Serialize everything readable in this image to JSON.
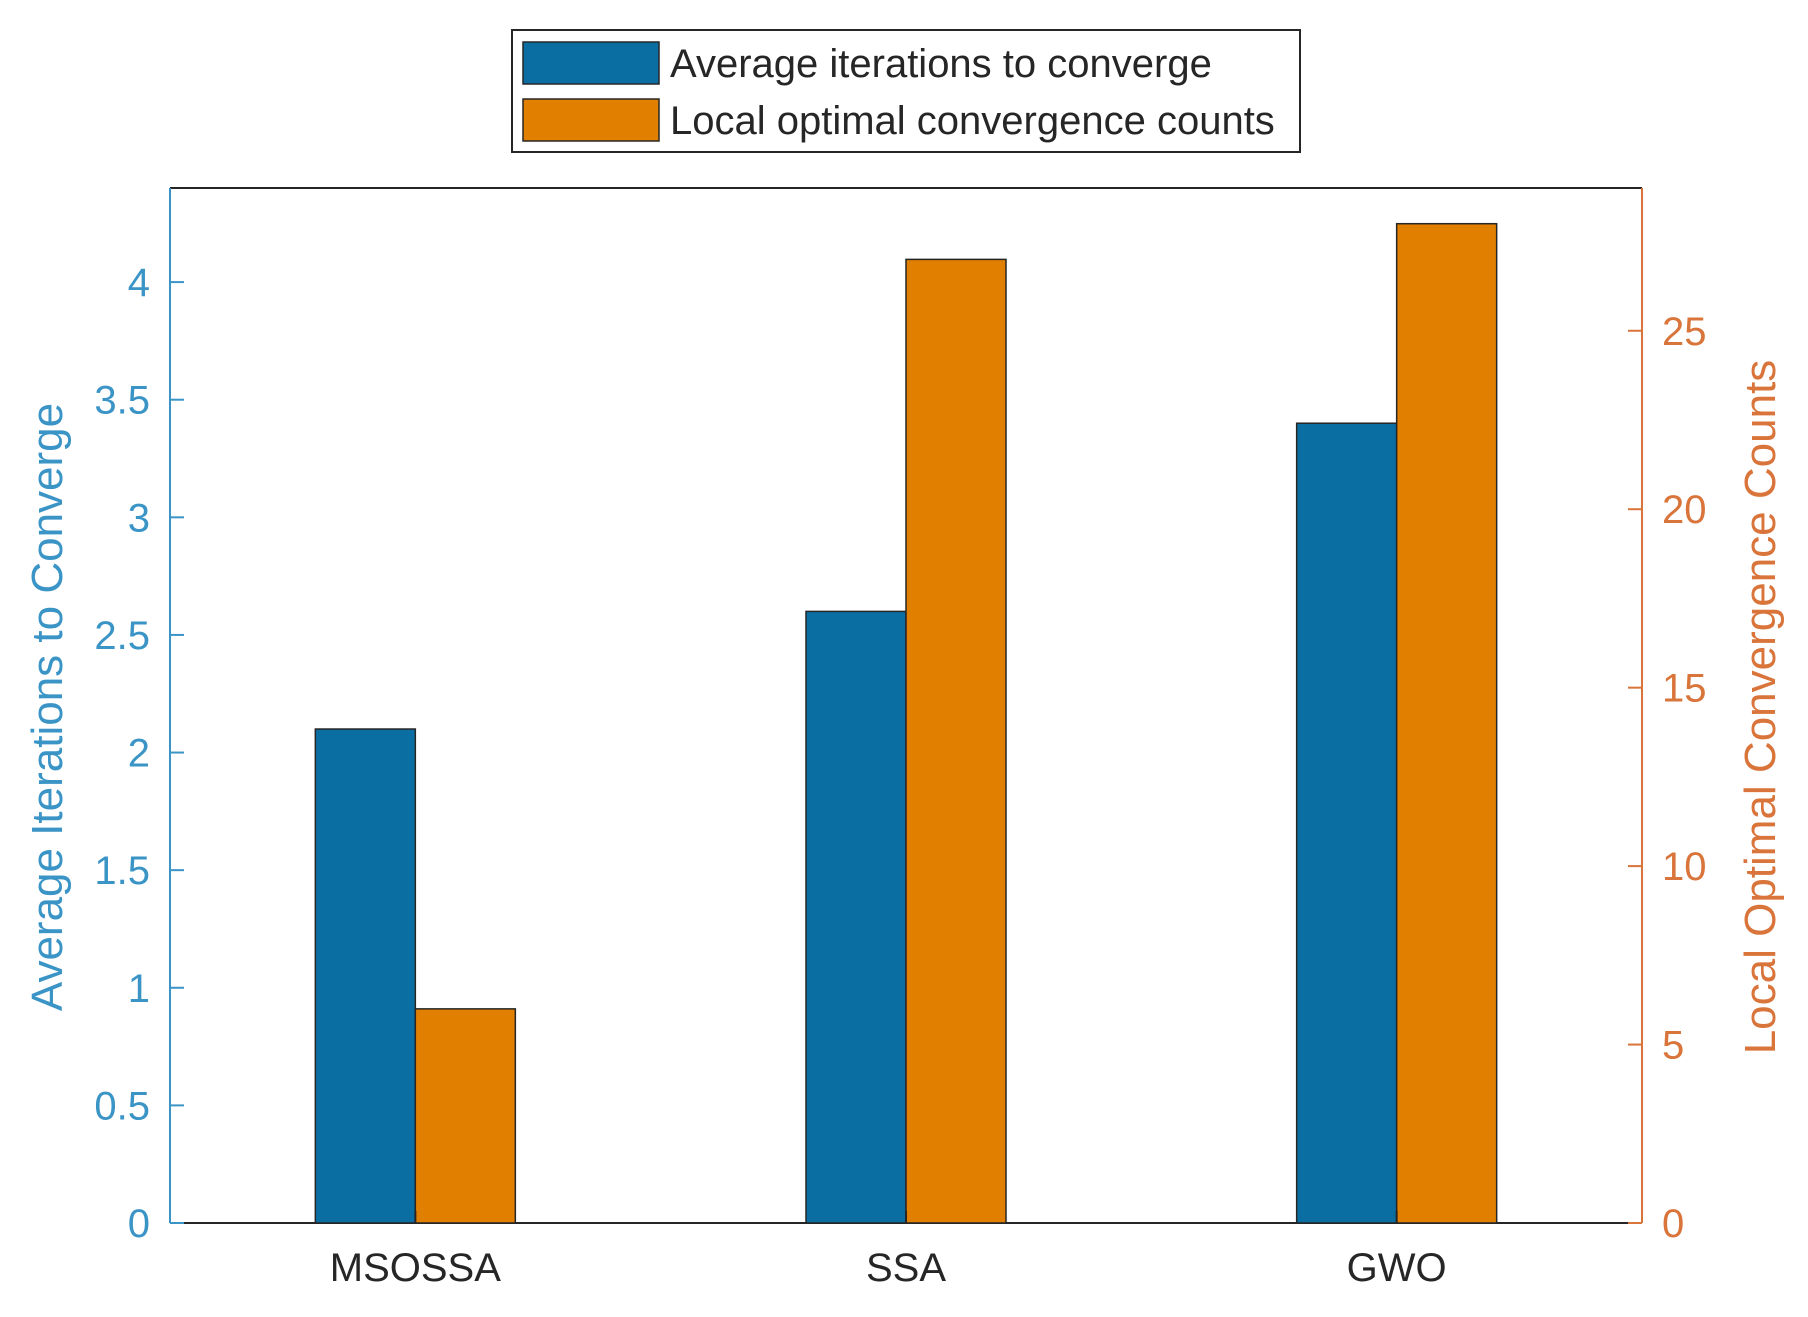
{
  "chart_data": {
    "type": "bar",
    "categories": [
      "MSOSSA",
      "SSA",
      "GWO"
    ],
    "series": [
      {
        "name": "Average iterations to converge",
        "axis": "left",
        "color": "#0b6ea3",
        "values": [
          2.1,
          2.6,
          3.4
        ]
      },
      {
        "name": "Local optimal convergence counts",
        "axis": "right",
        "color": "#e07f00",
        "values": [
          6,
          27,
          28
        ]
      }
    ],
    "left_axis": {
      "label": "Average Iterations to Converge",
      "color": "#3a94c6",
      "ylim": [
        0,
        4.4
      ],
      "ticks": [
        0,
        0.5,
        1,
        1.5,
        2,
        2.5,
        3,
        3.5,
        4
      ],
      "tick_labels": [
        "0",
        "0.5",
        "1",
        "1.5",
        "2",
        "2.5",
        "3",
        "3.5",
        "4"
      ]
    },
    "right_axis": {
      "label": "Local Optimal Convergence Counts",
      "color": "#d9743a",
      "ylim": [
        0,
        29
      ],
      "ticks": [
        0,
        5,
        10,
        15,
        20,
        25
      ],
      "tick_labels": [
        "0",
        "5",
        "10",
        "15",
        "20",
        "25"
      ]
    },
    "legend": {
      "placement": "top-center",
      "entries": [
        "Average iterations to converge",
        "Local optimal convergence counts"
      ]
    },
    "grid": false
  }
}
